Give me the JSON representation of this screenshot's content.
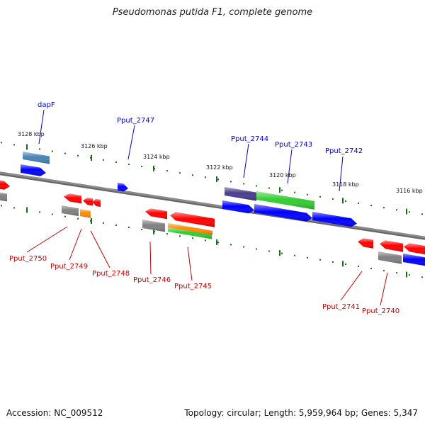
{
  "title": "Pseudomonas putida F1, complete genome",
  "footer": {
    "accession": "Accession: NC_009512",
    "summary": "Topology: circular; Length: 5,959,964 bp; Genes: 5,347"
  },
  "colors": {
    "backbone": "#8c8c8c",
    "forward_label": "#0000c8",
    "reverse_label": "#c80000",
    "tick": "#1a6b1a",
    "cds": "#0000ff",
    "gene": "#ff0000",
    "rna": "#808080",
    "misc_a": "#4682b4",
    "misc_b": "#483d8b",
    "misc_c": "#32cd32",
    "misc_d": "#ff8c00"
  },
  "ticks": [
    {
      "label": "3128 kbp"
    },
    {
      "label": "3126 kbp"
    },
    {
      "label": "3124 kbp"
    },
    {
      "label": "3122 kbp"
    },
    {
      "label": "3120 kbp"
    },
    {
      "label": "3118 kbp"
    },
    {
      "label": "3116 kbp"
    }
  ],
  "labels_forward": [
    {
      "name": "dapF"
    },
    {
      "name": "Pput_2747"
    },
    {
      "name": "Pput_2744"
    },
    {
      "name": "Pput_2743"
    },
    {
      "name": "Pput_2742"
    }
  ],
  "labels_reverse": [
    {
      "name": "Pput_2750"
    },
    {
      "name": "Pput_2749"
    },
    {
      "name": "Pput_2748"
    },
    {
      "name": "Pput_2746"
    },
    {
      "name": "Pput_2745"
    },
    {
      "name": "Pput_2741"
    },
    {
      "name": "Pput_2740"
    }
  ]
}
